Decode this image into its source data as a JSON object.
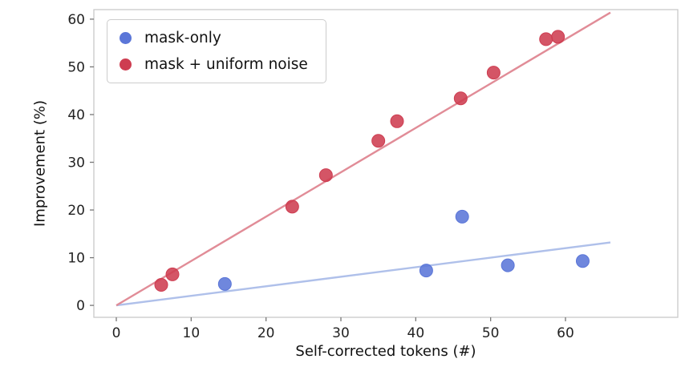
{
  "chart_data": {
    "type": "scatter",
    "title": "",
    "xlabel": "Self-corrected tokens (#)",
    "ylabel": "Improvement (%)",
    "xlim": [
      -3,
      75
    ],
    "ylim": [
      -2.5,
      62
    ],
    "xticks": [
      0,
      10,
      20,
      30,
      40,
      50,
      60
    ],
    "yticks": [
      0,
      10,
      20,
      30,
      40,
      50,
      60
    ],
    "grid": false,
    "legend_position": "upper-left",
    "trend_x_range": [
      0,
      66
    ],
    "series": [
      {
        "name": "mask-only",
        "color": "#5B76D8",
        "line_color": "#AFC0EA",
        "trend_slope": 0.2,
        "points": [
          [
            14.5,
            4.5
          ],
          [
            41.4,
            7.3
          ],
          [
            46.2,
            18.6
          ],
          [
            52.3,
            8.4
          ],
          [
            62.3,
            9.3
          ]
        ]
      },
      {
        "name": "mask + uniform noise",
        "color": "#CE3D51",
        "line_color": "#E18C97",
        "trend_slope": 0.93,
        "points": [
          [
            6,
            4.3
          ],
          [
            7.5,
            6.5
          ],
          [
            23.5,
            20.7
          ],
          [
            28,
            27.3
          ],
          [
            35,
            34.5
          ],
          [
            37.5,
            38.6
          ],
          [
            46,
            43.4
          ],
          [
            50.4,
            48.8
          ],
          [
            57.4,
            55.8
          ],
          [
            59,
            56.3
          ]
        ]
      }
    ]
  }
}
